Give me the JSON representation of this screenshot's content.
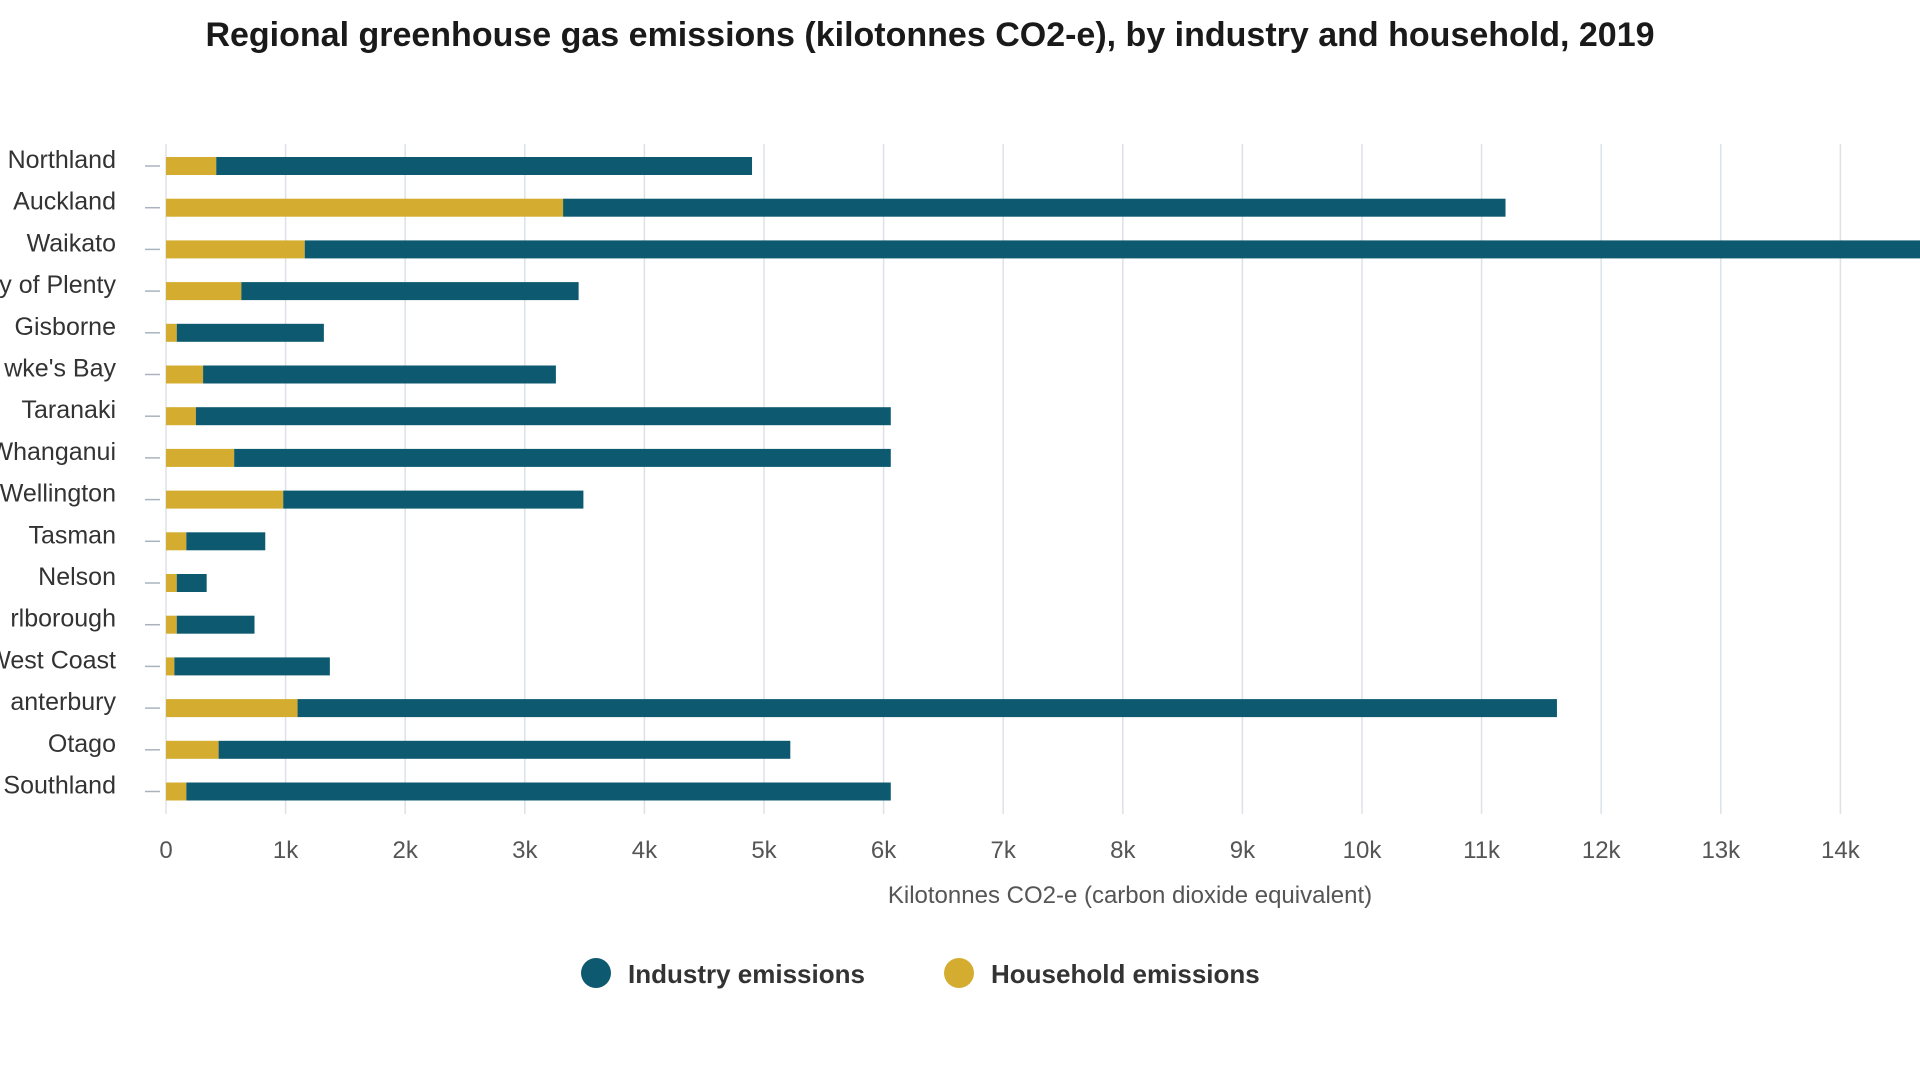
{
  "chart_data": {
    "type": "bar",
    "orientation": "horizontal",
    "stacked": true,
    "title": "Regional greenhouse gas emissions (kilotonnes CO2-e), by industry and household, 2019",
    "xlabel": "Kilotonnes CO2-e (carbon dioxide equivalent)",
    "ylabel": "",
    "xlim": [
      0,
      14800
    ],
    "x_ticks": [
      0,
      1000,
      2000,
      3000,
      4000,
      5000,
      6000,
      7000,
      8000,
      9000,
      10000,
      11000,
      12000,
      13000,
      14000
    ],
    "x_tick_labels": [
      "0",
      "1k",
      "2k",
      "3k",
      "4k",
      "5k",
      "6k",
      "7k",
      "8k",
      "9k",
      "10k",
      "11k",
      "12k",
      "13k",
      "14k"
    ],
    "grid": "vertical",
    "legend_position": "bottom",
    "categories": [
      "Northland",
      "Auckland",
      "Waikato",
      "y of Plenty",
      "Gisborne",
      "wke's Bay",
      "Taranaki",
      "Whanganui",
      "Wellington",
      "Tasman",
      "Nelson",
      "rlborough",
      "West Coast",
      "anterbury",
      "Otago",
      "Southland"
    ],
    "series": [
      {
        "name": "Household emissions",
        "color": "#d4ac2f",
        "values": [
          420,
          3320,
          1160,
          630,
          90,
          310,
          250,
          570,
          980,
          170,
          90,
          90,
          70,
          1100,
          440,
          170
        ]
      },
      {
        "name": "Industry emissions",
        "color": "#0d5a70",
        "values": [
          4480,
          7880,
          13640,
          2820,
          1230,
          2950,
          5810,
          5490,
          2510,
          660,
          250,
          650,
          1300,
          10530,
          4780,
          5890
        ]
      }
    ],
    "legend": [
      {
        "name": "Industry emissions",
        "color": "#0d5a70"
      },
      {
        "name": "Household emissions",
        "color": "#d4ac2f"
      }
    ]
  }
}
